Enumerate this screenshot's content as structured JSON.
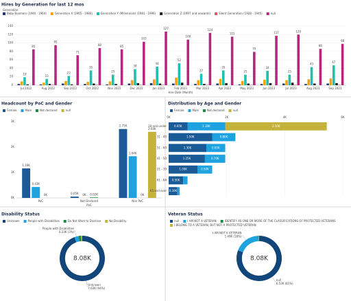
{
  "chart_data": [
    {
      "type": "bar",
      "title": "Hires by Generation for last 12 mos",
      "legend_title": "Generation",
      "x_label": "Hire Date (Month)",
      "categories": [
        "Jul 2022",
        "Aug 2022",
        "Sep 2022",
        "Oct 2022",
        "Nov 2022",
        "Dec 2022",
        "Jan 2023",
        "Feb 2023",
        "Mar 2023",
        "Apr 2023",
        "May 2023",
        "Jun 2023",
        "Jul 2023",
        "Aug 2023",
        "Sep 2023"
      ],
      "series": [
        {
          "name": "Baby Boomers (1946 - 1964)",
          "color": "#1f3a7a",
          "values": [
            3,
            2,
            4,
            3,
            2,
            4,
            5,
            4,
            3,
            4,
            2,
            3,
            4,
            3,
            4
          ]
        },
        {
          "name": "Generation X (1965 - 1980)",
          "color": "#f0a30a",
          "values": [
            9,
            6,
            10,
            8,
            9,
            12,
            14,
            18,
            12,
            15,
            10,
            13,
            12,
            14,
            16
          ]
        },
        {
          "name": "Generation Y (Millennials) (1981 - 1996)",
          "color": "#1ec1b0",
          "show_values": true,
          "values": [
            19,
            15,
            22,
            35,
            25,
            38,
            44,
            52,
            27,
            35,
            25,
            34,
            25,
            43,
            47
          ]
        },
        {
          "name": "Generation Z (1997 and onwards)",
          "color": "#222222",
          "values": [
            2,
            3,
            2,
            4,
            3,
            5,
            4,
            6,
            3,
            5,
            4,
            5,
            6,
            4,
            5
          ]
        },
        {
          "name": "Silent Generation (1928 - 1945)",
          "color": "#e0566b",
          "values": [
            0,
            1,
            0,
            1,
            0,
            1,
            1,
            0,
            1,
            0,
            1,
            0,
            1,
            0,
            1
          ]
        },
        {
          "name": "null",
          "color": "#b5287f",
          "show_values": true,
          "values": [
            85,
            95,
            71,
            88,
            85,
            103,
            127,
            108,
            124,
            115,
            79,
            117,
            120,
            86,
            98
          ]
        }
      ],
      "ylim": [
        0,
        140
      ],
      "yticks": [
        0,
        20,
        40,
        60,
        80,
        100,
        120,
        140
      ],
      "grid": true
    },
    {
      "type": "bar",
      "title": "Headcount by PoC and Gender",
      "x_label": "PoC",
      "categories": [
        "PoC",
        "Not Declared",
        "Non PoC"
      ],
      "series": [
        {
          "name": "Female",
          "color": "#1a5a96",
          "values": [
            1160,
            50,
            2710
          ],
          "value_labels": [
            "1.16K",
            "0.05K",
            "2.71K"
          ]
        },
        {
          "name": "Male",
          "color": "#1ea2e0",
          "values": [
            430,
            0,
            1640
          ],
          "value_labels": [
            "0.43K",
            "0K",
            "1.64K"
          ]
        },
        {
          "name": "Not declared",
          "color": "#1b8a3f",
          "values": [
            0,
            20,
            0
          ],
          "value_labels": [
            "0K",
            "0.02K",
            "0K"
          ]
        },
        {
          "name": "null",
          "color": "#c4b23b",
          "values": [
            null,
            null,
            2600
          ],
          "value_labels": [
            null,
            null,
            "2.60K"
          ]
        }
      ],
      "ylim": [
        0,
        3000
      ],
      "yticks": [
        {
          "value": 0,
          "label": "0K"
        },
        {
          "value": 1000,
          "label": "1K"
        },
        {
          "value": 2000,
          "label": "2K"
        },
        {
          "value": 3000,
          "label": "3K"
        }
      ],
      "grid": false
    },
    {
      "type": "barh",
      "title": "Distribution by Age and Gender",
      "categories": [
        "20 and under",
        "31 - 40",
        "51 - 60",
        "41 - 50",
        "21 - 30",
        "61 - 64",
        "65 and over"
      ],
      "series": [
        {
          "name": "Female",
          "color": "#1a5a96",
          "values": [
            650,
            1500,
            1300,
            1250,
            1000,
            500,
            300
          ],
          "value_labels": [
            "0.65K",
            "1.50K",
            "1.30K",
            "1.25K",
            "1.00K",
            "0.50K",
            "0.30K"
          ]
        },
        {
          "name": "Male",
          "color": "#1ea2e0",
          "values": [
            1300,
            800,
            650,
            700,
            500,
            150,
            80
          ],
          "value_labels": [
            "1.30K",
            "0.80K",
            "0.65K",
            "0.70K",
            "0.50K",
            null,
            null
          ]
        },
        {
          "name": "Not declared",
          "color": "#1b8a3f",
          "values": [
            null,
            null,
            null,
            null,
            null,
            null,
            null
          ]
        },
        {
          "name": "null",
          "color": "#c4b23b",
          "values": [
            3500,
            null,
            null,
            null,
            null,
            null,
            null
          ],
          "value_labels": [
            "3.50K",
            null,
            null,
            null,
            null,
            null,
            null
          ]
        }
      ],
      "xlim": [
        0,
        6000
      ],
      "xticks": [
        {
          "value": 0,
          "label": "0K"
        },
        {
          "value": 2000,
          "label": "2K"
        },
        {
          "value": 4000,
          "label": "4K"
        },
        {
          "value": 6000,
          "label": "6K"
        }
      ],
      "grid": true
    },
    {
      "type": "donut",
      "title": "Disability Status",
      "total_label": "8.08K",
      "categories": [
        "Unknown",
        "People with Disabilities",
        "Do Not Want to Disclose",
        "No Disability"
      ],
      "values": [
        7630,
        230,
        150,
        70
      ],
      "value_labels": [
        "7.63K (94%)",
        "0.23K (3%)",
        null,
        null
      ],
      "colors": [
        "#12467a",
        "#1ea2e0",
        "#1b8a3f",
        "#c4b23b"
      ]
    },
    {
      "type": "donut",
      "title": "Veteran Status",
      "total_label": "8.08K",
      "categories": [
        "null",
        "I AM NOT A VETERAN",
        "IDENTIFY AS ONE OR MORE OF THE CLASSIFICATIONS OF PROTECTED VETERANS",
        "I BELONG TO A VETERAN, BUT NOT A PROTECTED VETERAN"
      ],
      "values": [
        6530,
        1490,
        30,
        30
      ],
      "value_labels": [
        "6.53K (81%)",
        "1.49K (18%)",
        null,
        null
      ],
      "colors": [
        "#12467a",
        "#1ea2e0",
        "#1b8a3f",
        "#c4b23b"
      ]
    }
  ]
}
